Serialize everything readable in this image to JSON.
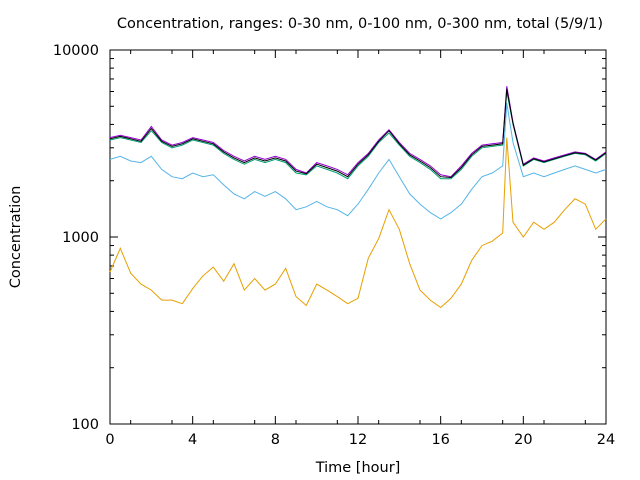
{
  "chart_data": {
    "type": "line",
    "title": "Concentration, ranges: 0-30 nm, 0-100 nm, 0-300 nm, total (5/9/1)",
    "xlabel": "Time [hour]",
    "ylabel": "Concentration",
    "xlim": [
      0,
      24
    ],
    "ylim": [
      100,
      10000
    ],
    "yscale": "log",
    "grid": false,
    "legend": "none",
    "x_ticks": [
      0,
      4,
      8,
      12,
      16,
      20,
      24
    ],
    "y_ticks": [
      100,
      1000,
      10000
    ],
    "x": [
      0,
      0.5,
      1,
      1.5,
      2,
      2.5,
      3,
      3.5,
      4,
      4.5,
      5,
      5.5,
      6,
      6.5,
      7,
      7.5,
      8,
      8.5,
      9,
      9.5,
      10,
      10.5,
      11,
      11.5,
      12,
      12.5,
      13,
      13.5,
      14,
      14.5,
      15,
      15.5,
      16,
      16.5,
      17,
      17.5,
      18,
      18.5,
      19,
      19.2,
      19.5,
      20,
      20.5,
      21,
      21.5,
      22,
      22.5,
      23,
      23.5,
      24
    ],
    "series": [
      {
        "color": "#e69f00",
        "values": [
          650,
          870,
          640,
          560,
          520,
          460,
          460,
          440,
          530,
          620,
          690,
          580,
          720,
          520,
          600,
          520,
          560,
          680,
          480,
          430,
          560,
          520,
          480,
          440,
          470,
          770,
          980,
          1400,
          1100,
          720,
          520,
          460,
          420,
          470,
          560,
          750,
          900,
          950,
          1050,
          3400,
          1200,
          1000,
          1200,
          1100,
          1200,
          1400,
          1600,
          1500,
          1100,
          1250
        ]
      },
      {
        "color": "#56b4e9",
        "values": [
          2600,
          2700,
          2550,
          2500,
          2700,
          2300,
          2100,
          2050,
          2200,
          2100,
          2150,
          1900,
          1700,
          1600,
          1750,
          1650,
          1750,
          1600,
          1400,
          1450,
          1550,
          1450,
          1400,
          1300,
          1500,
          1800,
          2200,
          2600,
          2100,
          1700,
          1500,
          1350,
          1250,
          1350,
          1500,
          1800,
          2100,
          2200,
          2400,
          5200,
          3200,
          2100,
          2200,
          2100,
          2200,
          2300,
          2400,
          2300,
          2200,
          2300
        ]
      },
      {
        "color": "#009e73",
        "values": [
          3300,
          3400,
          3300,
          3200,
          3700,
          3200,
          3000,
          3100,
          3300,
          3200,
          3100,
          2800,
          2600,
          2450,
          2600,
          2500,
          2600,
          2500,
          2200,
          2150,
          2400,
          2300,
          2200,
          2050,
          2400,
          2700,
          3200,
          3600,
          3100,
          2700,
          2500,
          2300,
          2050,
          2050,
          2300,
          2700,
          3000,
          3050,
          3100,
          6000,
          4000,
          2400,
          2600,
          2500,
          2600,
          2700,
          2800,
          2750,
          2550,
          2800
        ]
      },
      {
        "color": "#9400d3",
        "values": [
          3400,
          3500,
          3400,
          3300,
          3900,
          3300,
          3100,
          3200,
          3400,
          3300,
          3200,
          2900,
          2700,
          2550,
          2700,
          2600,
          2700,
          2600,
          2300,
          2200,
          2500,
          2400,
          2300,
          2150,
          2500,
          2800,
          3300,
          3750,
          3200,
          2800,
          2600,
          2400,
          2150,
          2100,
          2400,
          2800,
          3100,
          3150,
          3200,
          6400,
          4100,
          2450,
          2650,
          2550,
          2650,
          2750,
          2850,
          2800,
          2600,
          2850
        ]
      },
      {
        "color": "#000000",
        "values": [
          3350,
          3450,
          3350,
          3250,
          3800,
          3250,
          3050,
          3150,
          3350,
          3250,
          3150,
          2850,
          2650,
          2500,
          2650,
          2550,
          2650,
          2550,
          2250,
          2180,
          2450,
          2350,
          2250,
          2100,
          2450,
          2750,
          3250,
          3700,
          3150,
          2750,
          2550,
          2350,
          2100,
          2080,
          2350,
          2750,
          3050,
          3100,
          3150,
          6200,
          4050,
          2420,
          2620,
          2520,
          2620,
          2720,
          2820,
          2780,
          2580,
          2820
        ]
      }
    ]
  }
}
